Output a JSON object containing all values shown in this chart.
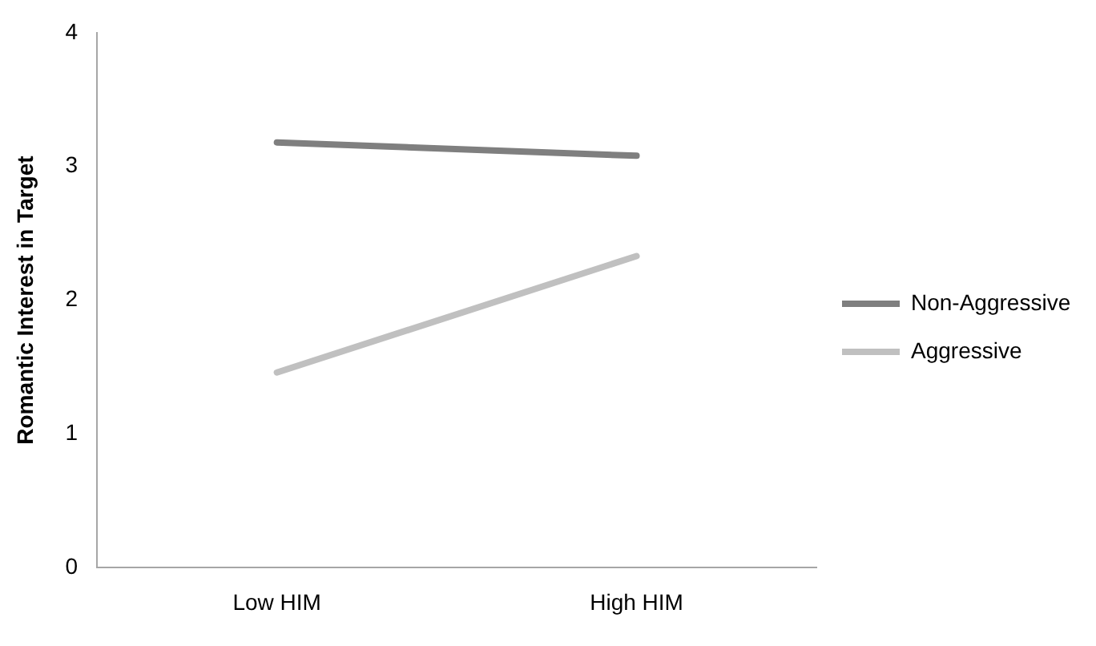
{
  "chart_data": {
    "type": "line",
    "ylabel": "Romantic Interest in Target",
    "categories": [
      "Low HIM",
      "High HIM"
    ],
    "series": [
      {
        "name": "Non-Aggressive",
        "color": "#7f7f7f",
        "values": [
          3.18,
          3.08
        ]
      },
      {
        "name": "Aggressive",
        "color": "#c0c0c0",
        "values": [
          1.46,
          2.33
        ]
      }
    ],
    "ylim": [
      0,
      4
    ],
    "yticks": [
      0,
      1,
      2,
      3,
      4
    ],
    "grid": false,
    "legend": "right",
    "marker": "none"
  }
}
